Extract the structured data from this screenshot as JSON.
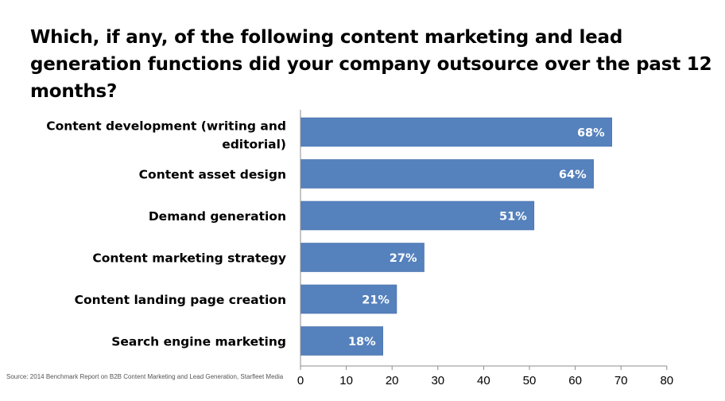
{
  "title": "Which, if any, of the following content marketing and lead generation functions did your company outsource over the past 12 months?",
  "source": "Source: 2014 Benchmark Report on B2B Content Marketing and Lead Generation, Starfleet Media",
  "chart_data": {
    "type": "bar",
    "orientation": "horizontal",
    "categories": [
      "Content development (writing and editorial)",
      "Content asset design",
      "Demand generation",
      "Content marketing strategy",
      "Content landing page creation",
      "Search engine marketing"
    ],
    "category_lines": [
      [
        "Content development (writing and",
        "editorial)"
      ],
      [
        "Content asset design"
      ],
      [
        "Demand generation"
      ],
      [
        "Content marketing strategy"
      ],
      [
        "Content landing page creation"
      ],
      [
        "Search engine marketing"
      ]
    ],
    "values": [
      68,
      64,
      51,
      27,
      21,
      18
    ],
    "data_labels": [
      "68%",
      "64%",
      "51%",
      "27%",
      "21%",
      "18%"
    ],
    "xlim": [
      0,
      80
    ],
    "xticks": [
      0,
      10,
      20,
      30,
      40,
      50,
      60,
      70,
      80
    ],
    "xtick_labels": [
      "0",
      "10",
      "20",
      "30",
      "40",
      "50",
      "60",
      "70",
      "80"
    ],
    "xlabel": "",
    "ylabel": "",
    "grid": false,
    "legend": "none",
    "colors": {
      "bar": "#5581bd",
      "bar_stroke": "#4a72aa",
      "axis": "#8c8c8c",
      "bar_text": "#ffffff"
    }
  }
}
